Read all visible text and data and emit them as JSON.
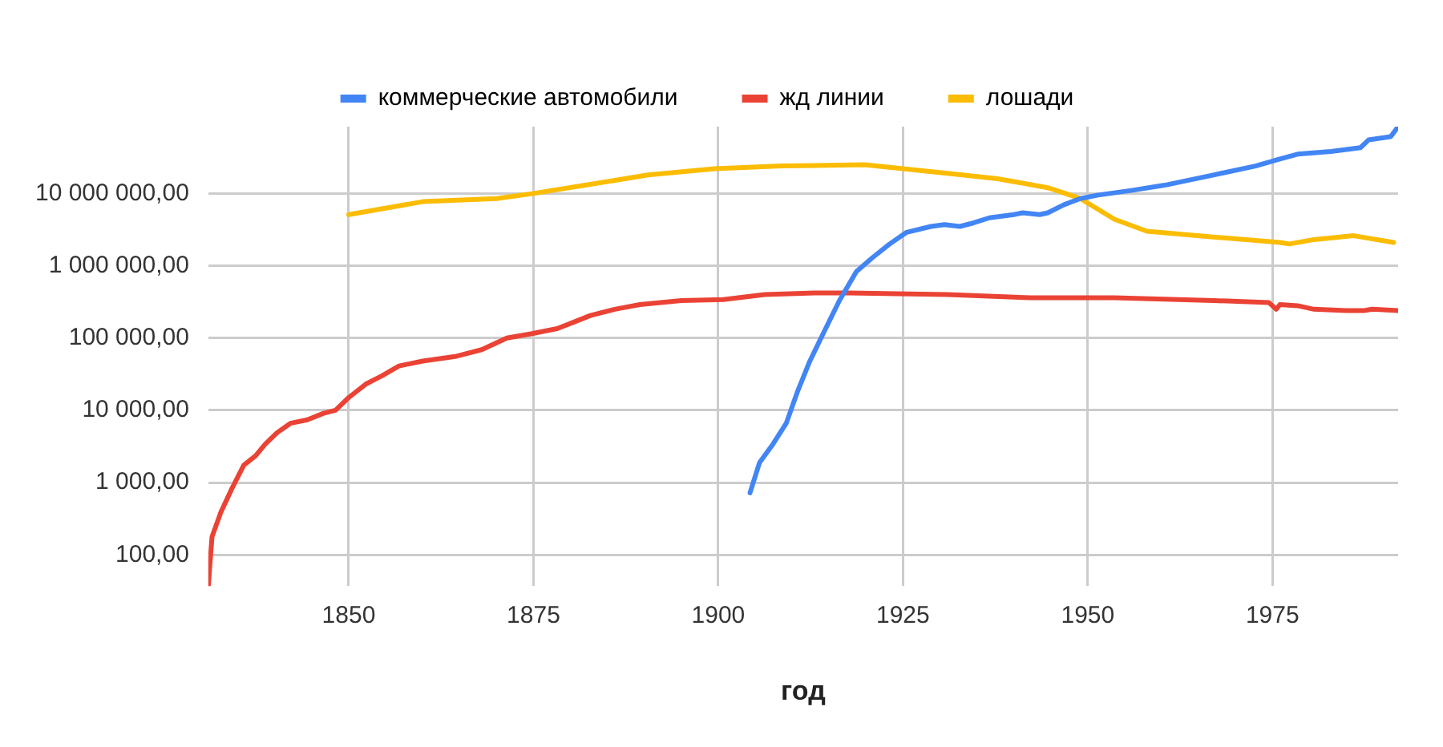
{
  "chart_data": {
    "type": "line",
    "xlabel": "год",
    "log": "y",
    "grid": true,
    "legend": "top",
    "marker": "none",
    "line_style": "solid",
    "xlim": [
      1831,
      1992
    ],
    "xticks": [
      1850,
      1875,
      1900,
      1925,
      1950,
      1975
    ],
    "ylim": [
      37,
      84000000
    ],
    "yticks": [
      {
        "value": 100,
        "label": "100,00"
      },
      {
        "value": 1000,
        "label": "1 000,00"
      },
      {
        "value": 10000,
        "label": "10 000,00"
      },
      {
        "value": 100000,
        "label": "100 000,00"
      },
      {
        "value": 1000000,
        "label": "1 000 000,00"
      },
      {
        "value": 10000000,
        "label": "10 000 000,00"
      }
    ],
    "series": [
      {
        "name": "коммерческие автомобили",
        "color": "#4285f4",
        "x": [
          1904.3,
          1905.6,
          1907.4,
          1909.2,
          1910.8,
          1912.4,
          1914.2,
          1916.4,
          1918.7,
          1920.9,
          1923.2,
          1925.5,
          1928.8,
          1930.6,
          1932.7,
          1934.5,
          1936.7,
          1940,
          1941.2,
          1943.5,
          1944.6,
          1946.8,
          1949,
          1951.4,
          1955.9,
          1960.4,
          1967,
          1972.7,
          1976,
          1978.4,
          1982.9,
          1986.9,
          1988,
          1991,
          1992
        ],
        "values": [
          720,
          1900,
          3400,
          6600,
          19000,
          48000,
          115000,
          330000,
          830000,
          1300000,
          2000000,
          2900000,
          3500000,
          3700000,
          3500000,
          3900000,
          4600000,
          5100000,
          5400000,
          5100000,
          5400000,
          7000000,
          8500000,
          9500000,
          11000000,
          13000000,
          18000000,
          24000000,
          30000000,
          35000000,
          38000000,
          43000000,
          55000000,
          61000000,
          84000000
        ]
      },
      {
        "name": "жд линии",
        "color": "#ea4335",
        "x": [
          1831,
          1831.5,
          1832.7,
          1834.2,
          1835.8,
          1837.4,
          1838.7,
          1840.3,
          1842.1,
          1844.4,
          1846.6,
          1848.2,
          1850,
          1852.3,
          1854.5,
          1856.8,
          1860,
          1864.6,
          1868,
          1871.4,
          1874.8,
          1878.2,
          1880.4,
          1882.7,
          1886,
          1889.4,
          1895,
          1900.7,
          1906.3,
          1913,
          1917.6,
          1931,
          1942.3,
          1953.6,
          1967,
          1974.5,
          1975.5,
          1976,
          1978.4,
          1980.6,
          1985,
          1987.4,
          1988.5,
          1992
        ],
        "values": [
          37,
          178,
          390,
          830,
          1740,
          2350,
          3400,
          4900,
          6600,
          7400,
          9100,
          10000,
          15000,
          23000,
          30000,
          41000,
          48000,
          56000,
          69000,
          100000,
          115000,
          135000,
          165000,
          205000,
          250000,
          290000,
          330000,
          340000,
          400000,
          420000,
          420000,
          400000,
          360000,
          360000,
          330000,
          310000,
          250000,
          290000,
          280000,
          250000,
          240000,
          240000,
          250000,
          240000
        ]
      },
      {
        "name": "лошади",
        "color": "#fbbc04",
        "x": [
          1850,
          1860,
          1870,
          1875,
          1882,
          1890.5,
          1899.5,
          1908.6,
          1919.8,
          1931,
          1937.8,
          1944.6,
          1949,
          1953.6,
          1958,
          1967,
          1976,
          1977.3,
          1980.6,
          1986,
          1991.4
        ],
        "values": [
          5100000,
          7700000,
          8500000,
          10000000,
          13000000,
          18000000,
          22000000,
          24000000,
          25000000,
          19000000,
          16000000,
          12000000,
          8500000,
          4400000,
          3000000,
          2500000,
          2100000,
          2000000,
          2300000,
          2600000,
          2100000
        ]
      }
    ]
  }
}
